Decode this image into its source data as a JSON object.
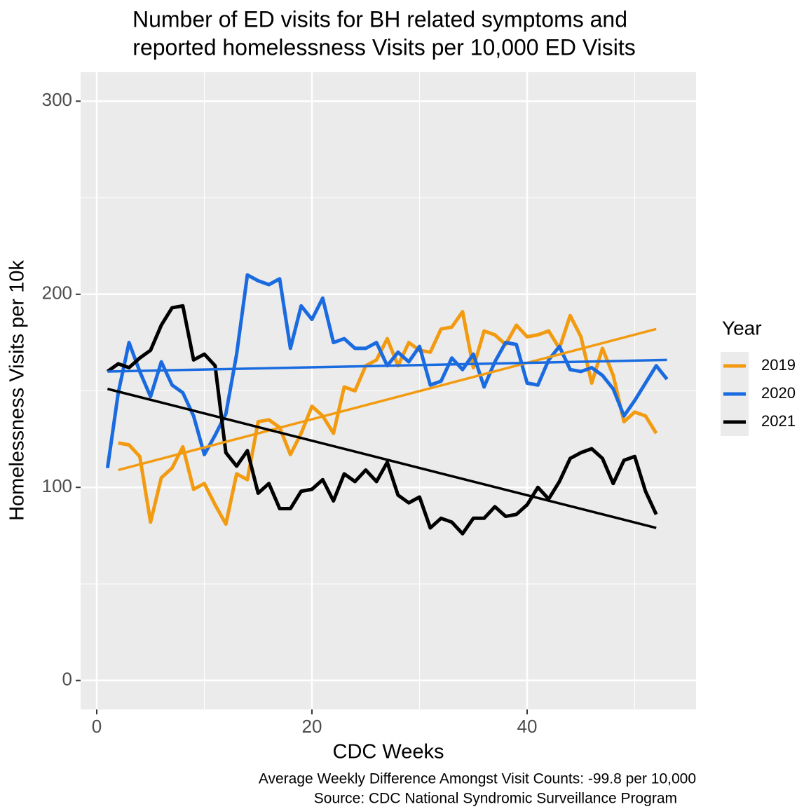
{
  "chart_data": {
    "type": "line",
    "title": [
      "Number of ED visits for BH related symptoms and",
      "reported homelessness Visits per 10,000 ED Visits"
    ],
    "x_label": "CDC Weeks",
    "y_label": "Homelessness Visits per 10k",
    "legend_title": "Year",
    "legend_position": "right",
    "caption": [
      "Average Weekly Difference Amongst Visit Counts: -99.8 per 10,000",
      "Source: CDC National Syndromic Surveillance Program"
    ],
    "xlim": [
      -1.5,
      55.7
    ],
    "ylim": [
      -15,
      315
    ],
    "xticks": [
      0,
      20,
      40
    ],
    "yticks": [
      0,
      100,
      200,
      300
    ],
    "xminor": [
      10,
      30,
      50
    ],
    "yminor": [
      50,
      150,
      250
    ],
    "grid": true,
    "series": [
      {
        "name": "2019",
        "color": "#f29b11",
        "x": [
          2,
          3,
          4,
          5,
          6,
          7,
          8,
          9,
          10,
          11,
          12,
          13,
          14,
          15,
          16,
          17,
          18,
          19,
          20,
          21,
          22,
          23,
          24,
          25,
          26,
          27,
          28,
          29,
          30,
          31,
          32,
          33,
          34,
          35,
          36,
          37,
          38,
          39,
          40,
          41,
          42,
          43,
          44,
          45,
          46,
          47,
          48,
          49,
          50,
          51,
          52
        ],
        "values": [
          123,
          122,
          116,
          82,
          105,
          110,
          121,
          99,
          102,
          91,
          81,
          107,
          104,
          134,
          135,
          131,
          117,
          128,
          142,
          137,
          128,
          152,
          150,
          163,
          166,
          177,
          163,
          175,
          171,
          170,
          182,
          183,
          191,
          162,
          181,
          179,
          174,
          184,
          178,
          179,
          181,
          172,
          189,
          178,
          154,
          172,
          158,
          134,
          139,
          137,
          128
        ],
        "trend_x": [
          2,
          52
        ],
        "trend_values": [
          109,
          182
        ]
      },
      {
        "name": "2020",
        "color": "#1a6be0",
        "x": [
          1,
          2,
          3,
          4,
          5,
          6,
          7,
          8,
          9,
          10,
          11,
          12,
          13,
          14,
          15,
          16,
          17,
          18,
          19,
          20,
          21,
          22,
          23,
          24,
          25,
          26,
          27,
          28,
          29,
          30,
          31,
          32,
          33,
          34,
          35,
          36,
          37,
          38,
          39,
          40,
          41,
          42,
          43,
          44,
          45,
          46,
          47,
          48,
          49,
          50,
          51,
          52,
          53
        ],
        "values": [
          110,
          149,
          175,
          160,
          147,
          165,
          153,
          149,
          137,
          117,
          127,
          138,
          169,
          210,
          207,
          205,
          208,
          172,
          194,
          187,
          198,
          175,
          177,
          172,
          172,
          175,
          163,
          170,
          165,
          173,
          153,
          155,
          167,
          161,
          169,
          152,
          165,
          175,
          174,
          154,
          153,
          166,
          173,
          161,
          160,
          162,
          158,
          151,
          137,
          145,
          154,
          163,
          156
        ],
        "trend_x": [
          1,
          53
        ],
        "trend_values": [
          160,
          166
        ]
      },
      {
        "name": "2021",
        "color": "#000000",
        "x": [
          1,
          2,
          3,
          4,
          5,
          6,
          7,
          8,
          9,
          10,
          11,
          12,
          13,
          14,
          15,
          16,
          17,
          18,
          19,
          20,
          21,
          22,
          23,
          24,
          25,
          26,
          27,
          28,
          29,
          30,
          31,
          32,
          33,
          34,
          35,
          36,
          37,
          38,
          39,
          40,
          41,
          42,
          43,
          44,
          45,
          46,
          47,
          48,
          49,
          50,
          51,
          52
        ],
        "values": [
          160,
          164,
          162,
          167,
          171,
          184,
          193,
          194,
          166,
          169,
          163,
          118,
          111,
          119,
          97,
          102,
          89,
          89,
          98,
          99,
          104,
          93,
          107,
          103,
          109,
          103,
          113,
          96,
          92,
          95,
          79,
          84,
          82,
          76,
          84,
          84,
          90,
          85,
          86,
          91,
          100,
          94,
          103,
          115,
          118,
          120,
          115,
          102,
          114,
          116,
          98,
          86
        ],
        "trend_x": [
          1,
          52
        ],
        "trend_values": [
          151,
          79
        ]
      }
    ]
  }
}
